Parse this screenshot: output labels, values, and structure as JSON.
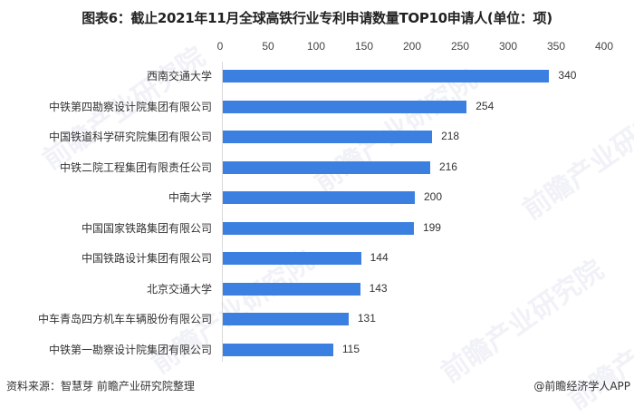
{
  "title": "图表6：截止2021年11月全球高铁行业专利申请数量TOP10申请人(单位：项)",
  "watermark": "前瞻产业研究院",
  "footer": {
    "source": "资料来源：智慧芽 前瞻产业研究院整理",
    "credit": "@前瞻经济学人APP"
  },
  "colors": {
    "bar": "#3b80e0",
    "axis": "#d9d9d9"
  },
  "chart_data": {
    "type": "bar",
    "orientation": "horizontal",
    "title": "图表6：截止2021年11月全球高铁行业专利申请数量TOP10申请人(单位：项)",
    "xlabel": "",
    "ylabel": "",
    "xlim": [
      0,
      400
    ],
    "xticks": [
      "0",
      "50",
      "100",
      "150",
      "200",
      "250",
      "300",
      "350",
      "400"
    ],
    "xaxis_position": "top",
    "grid": false,
    "legend": null,
    "categories": [
      "西南交通大学",
      "中铁第四勘察设计院集团有限公司",
      "中国铁道科学研究院集团有限公司",
      "中铁二院工程集团有限责任公司",
      "中南大学",
      "中国国家铁路集团有限公司",
      "中国铁路设计集团有限公司",
      "北京交通大学",
      "中车青岛四方机车车辆股份有限公司",
      "中铁第一勘察设计院集团有限公司"
    ],
    "values": [
      340,
      254,
      218,
      216,
      200,
      199,
      144,
      143,
      131,
      115
    ],
    "data_labels": [
      "340",
      "254",
      "218",
      "216",
      "200",
      "199",
      "144",
      "143",
      "131",
      "115"
    ]
  }
}
